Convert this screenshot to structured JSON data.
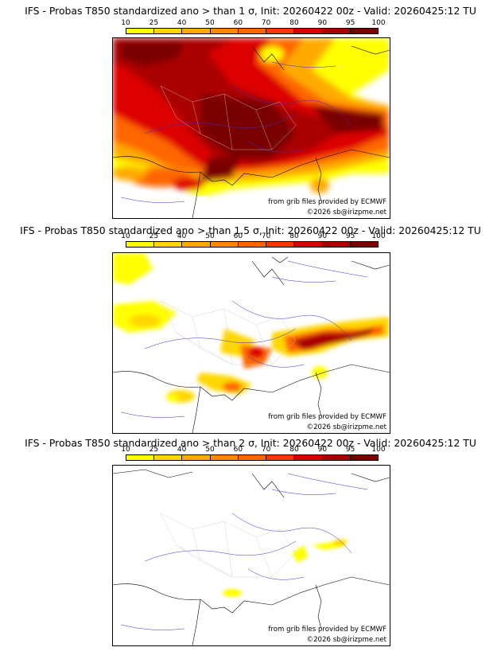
{
  "panels": [
    {
      "title": "IFS - Probas T850  standardized ano > than 1 σ, Init: 20260422 00z - Valid: 20260425:12 TU",
      "probability_level": "high",
      "threshold_sigma": "1"
    },
    {
      "title": "IFS - Probas T850  standardized ano > than 1.5 σ, Init: 20260422 00z - Valid: 20260425:12 TU",
      "probability_level": "medium",
      "threshold_sigma": "1.5"
    },
    {
      "title": "IFS - Probas T850  standardized ano > than 2 σ, Init: 20260422 00z - Valid: 20260425:12 TU",
      "probability_level": "low",
      "threshold_sigma": "2"
    }
  ],
  "colorbar": {
    "ticks": [
      "10",
      "25",
      "40",
      "50",
      "60",
      "70",
      "80",
      "90",
      "95",
      "100"
    ],
    "colors": [
      "#ffff00",
      "#ffd700",
      "#ffaa00",
      "#ff8800",
      "#ff6600",
      "#ff3300",
      "#dd0000",
      "#aa0000",
      "#7a0000"
    ]
  },
  "credits": {
    "source": "from grib files provided by ECMWF",
    "copyright": "©2026 sb@irizpme.net"
  }
}
